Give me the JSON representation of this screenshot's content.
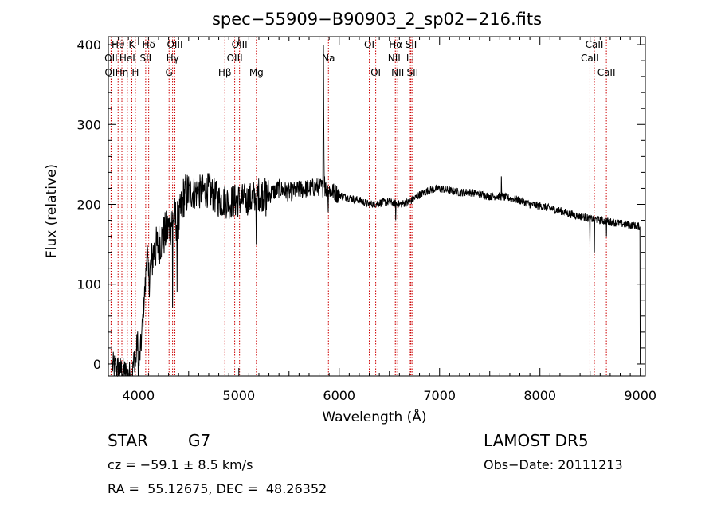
{
  "chart_data": {
    "type": "line",
    "title": "spec−55909−B90903_2_sp02−216.fits",
    "xlabel": "Wavelength (Å)",
    "ylabel": "Flux (relative)",
    "xlim": [
      3700,
      9050
    ],
    "ylim": [
      -15,
      410
    ],
    "xticks": [
      4000,
      5000,
      6000,
      7000,
      8000,
      9000
    ],
    "yticks": [
      0,
      100,
      200,
      300,
      400
    ],
    "line_color": "#000000",
    "marker_color": "#cc0000",
    "continuum": [
      [
        3740,
        -2
      ],
      [
        3800,
        -6
      ],
      [
        3860,
        -10
      ],
      [
        3900,
        -14
      ],
      [
        3940,
        -12
      ],
      [
        3960,
        10
      ],
      [
        3970,
        -5
      ],
      [
        3990,
        35
      ],
      [
        4000,
        -10
      ],
      [
        4010,
        5
      ],
      [
        4030,
        30
      ],
      [
        4050,
        70
      ],
      [
        4070,
        100
      ],
      [
        4085,
        150
      ],
      [
        4100,
        105
      ],
      [
        4150,
        140
      ],
      [
        4200,
        150
      ],
      [
        4250,
        160
      ],
      [
        4300,
        170
      ],
      [
        4350,
        185
      ],
      [
        4400,
        175
      ],
      [
        4450,
        210
      ],
      [
        4500,
        215
      ],
      [
        4600,
        215
      ],
      [
        4700,
        218
      ],
      [
        4800,
        205
      ],
      [
        4900,
        203
      ],
      [
        5000,
        205
      ],
      [
        5100,
        205
      ],
      [
        5200,
        213
      ],
      [
        5300,
        212
      ],
      [
        5400,
        220
      ],
      [
        5500,
        215
      ],
      [
        5600,
        218
      ],
      [
        5700,
        220
      ],
      [
        5800,
        222
      ],
      [
        5900,
        218
      ],
      [
        6000,
        212
      ],
      [
        6100,
        208
      ],
      [
        6200,
        205
      ],
      [
        6300,
        200
      ],
      [
        6400,
        202
      ],
      [
        6500,
        203
      ],
      [
        6600,
        200
      ],
      [
        6700,
        203
      ],
      [
        6800,
        212
      ],
      [
        6900,
        218
      ],
      [
        7000,
        220
      ],
      [
        7100,
        217
      ],
      [
        7200,
        215
      ],
      [
        7300,
        215
      ],
      [
        7400,
        213
      ],
      [
        7500,
        210
      ],
      [
        7600,
        210
      ],
      [
        7700,
        208
      ],
      [
        7800,
        205
      ],
      [
        7900,
        200
      ],
      [
        8000,
        198
      ],
      [
        8100,
        195
      ],
      [
        8200,
        192
      ],
      [
        8300,
        188
      ],
      [
        8400,
        185
      ],
      [
        8500,
        182
      ],
      [
        8600,
        180
      ],
      [
        8700,
        178
      ],
      [
        8800,
        176
      ],
      [
        8900,
        174
      ],
      [
        9000,
        172
      ]
    ],
    "features": [
      [
        4340,
        70
      ],
      [
        4385,
        90
      ],
      [
        4861,
        190
      ],
      [
        4920,
        190
      ],
      [
        5100,
        195
      ],
      [
        5175,
        150
      ],
      [
        5270,
        185
      ],
      [
        5890,
        190
      ],
      [
        6563,
        180
      ],
      [
        8498,
        150
      ],
      [
        8542,
        140
      ],
      [
        8662,
        160
      ],
      [
        5840,
        325
      ],
      [
        5843,
        400
      ],
      [
        5847,
        310
      ],
      [
        5850,
        260
      ],
      [
        5854,
        235
      ],
      [
        7615,
        235
      ],
      [
        9000,
        0
      ]
    ],
    "lines": [
      {
        "name": "Hθ",
        "x": 3797,
        "row": 1
      },
      {
        "name": "OII",
        "x": 3727,
        "row": 2
      },
      {
        "name": "OII",
        "x": 3729,
        "row": 3
      },
      {
        "name": "Hη",
        "x": 3835,
        "row": 3
      },
      {
        "name": "K",
        "x": 3934,
        "row": 1
      },
      {
        "name": "HeI",
        "x": 3889,
        "row": 2
      },
      {
        "name": "H",
        "x": 3969,
        "row": 3
      },
      {
        "name": "Hδ",
        "x": 4102,
        "row": 1
      },
      {
        "name": "SII",
        "x": 4072,
        "row": 2
      },
      {
        "name": "OIII",
        "x": 4363,
        "row": 1
      },
      {
        "name": "Hγ",
        "x": 4340,
        "row": 2
      },
      {
        "name": "G",
        "x": 4305,
        "row": 3
      },
      {
        "name": "OIII",
        "x": 5007,
        "row": 1
      },
      {
        "name": "OIII",
        "x": 4959,
        "row": 2
      },
      {
        "name": "Hβ",
        "x": 4861,
        "row": 3
      },
      {
        "name": "Mg",
        "x": 5175,
        "row": 3
      },
      {
        "name": "Na",
        "x": 5893,
        "row": 2
      },
      {
        "name": "OI",
        "x": 6300,
        "row": 1
      },
      {
        "name": "OI",
        "x": 6364,
        "row": 3
      },
      {
        "name": "Hα",
        "x": 6563,
        "row": 1
      },
      {
        "name": "NII",
        "x": 6548,
        "row": 2
      },
      {
        "name": "NII",
        "x": 6583,
        "row": 3
      },
      {
        "name": "SII",
        "x": 6716,
        "row": 1
      },
      {
        "name": "Li",
        "x": 6708,
        "row": 2
      },
      {
        "name": "SII",
        "x": 6731,
        "row": 3
      },
      {
        "name": "CaII",
        "x": 8542,
        "row": 1
      },
      {
        "name": "CaII",
        "x": 8498,
        "row": 2
      },
      {
        "name": "CaII",
        "x": 8662,
        "row": 3
      }
    ]
  },
  "info": {
    "object_class": "STAR",
    "subclass": "G7",
    "survey": "LAMOST DR5",
    "cz": "cz = −59.1 ± 8.5 km/s",
    "obs_date": "Obs−Date: 20111213",
    "coords": "RA =  55.12675, DEC =  48.26352"
  }
}
